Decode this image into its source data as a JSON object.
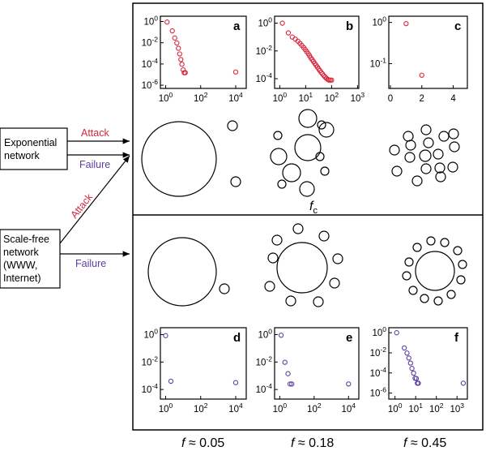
{
  "boxes": {
    "exponential": "Exponential network",
    "scale_free": "Scale-free network (WWW, Internet)"
  },
  "arrows": {
    "attack": "Attack",
    "failure": "Failure",
    "attack_color": "#d7263d",
    "failure_color": "#5b3f9e"
  },
  "critical_label": "f",
  "critical_sub": "c",
  "f_labels": [
    "0.05",
    "0.18",
    "0.45"
  ],
  "f_prefix": "f ≈ ",
  "panels": [
    {
      "letter": "a",
      "row": "top",
      "col": 0,
      "color": "#d7263d",
      "xscale": "log",
      "xticks": [
        {
          "b": "10",
          "e": "0"
        },
        {
          "b": "10",
          "e": "2"
        },
        {
          "b": "10",
          "e": "4"
        }
      ],
      "yticks": [
        {
          "b": "10",
          "e": "0"
        },
        {
          "b": "10",
          "e": "-2"
        },
        {
          "b": "10",
          "e": "-4"
        },
        {
          "b": "10",
          "e": "-6"
        }
      ],
      "xrange": [
        -0.3,
        4.6
      ],
      "yrange": [
        -6.3,
        0.5
      ],
      "points": [
        [
          0.08,
          -0.05
        ],
        [
          0.38,
          -0.88
        ],
        [
          0.52,
          -1.55
        ],
        [
          0.64,
          -2.02
        ],
        [
          0.73,
          -2.52
        ],
        [
          0.8,
          -3.05
        ],
        [
          0.87,
          -3.58
        ],
        [
          0.93,
          -4.02
        ],
        [
          1.0,
          -4.55
        ],
        [
          1.06,
          -4.82
        ],
        [
          1.12,
          -4.82
        ],
        [
          4.0,
          -4.75
        ]
      ]
    },
    {
      "letter": "b",
      "row": "top",
      "col": 1,
      "color": "#d7263d",
      "xscale": "log",
      "xticks": [
        {
          "b": "10",
          "e": "0"
        },
        {
          "b": "10",
          "e": "1"
        },
        {
          "b": "10",
          "e": "2"
        },
        {
          "b": "10",
          "e": "3"
        }
      ],
      "yticks": [
        {
          "b": "10",
          "e": "0"
        },
        {
          "b": "10",
          "e": "-2"
        },
        {
          "b": "10",
          "e": "-4"
        }
      ],
      "xrange": [
        -0.2,
        3.05
      ],
      "yrange": [
        -4.7,
        0.5
      ],
      "points": [
        [
          0.1,
          0.0
        ],
        [
          0.33,
          -0.7
        ],
        [
          0.48,
          -1.0
        ],
        [
          0.6,
          -1.15
        ],
        [
          0.7,
          -1.3
        ],
        [
          0.78,
          -1.45
        ],
        [
          0.85,
          -1.6
        ],
        [
          0.92,
          -1.75
        ],
        [
          0.98,
          -1.9
        ],
        [
          1.04,
          -2.05
        ],
        [
          1.1,
          -2.2
        ],
        [
          1.15,
          -2.35
        ],
        [
          1.2,
          -2.5
        ],
        [
          1.25,
          -2.63
        ],
        [
          1.3,
          -2.76
        ],
        [
          1.35,
          -2.9
        ],
        [
          1.4,
          -3.03
        ],
        [
          1.45,
          -3.16
        ],
        [
          1.5,
          -3.3
        ],
        [
          1.55,
          -3.42
        ],
        [
          1.6,
          -3.55
        ],
        [
          1.65,
          -3.66
        ],
        [
          1.7,
          -3.78
        ],
        [
          1.75,
          -3.88
        ],
        [
          1.8,
          -3.97
        ],
        [
          1.85,
          -4.05
        ],
        [
          1.9,
          -4.1
        ],
        [
          1.95,
          -4.1
        ],
        [
          2.0,
          -4.1
        ]
      ]
    },
    {
      "letter": "c",
      "row": "top",
      "col": 2,
      "color": "#d7263d",
      "xscale": "linear",
      "xticks": [
        {
          "b": "0",
          "e": ""
        },
        {
          "b": "2",
          "e": ""
        },
        {
          "b": "4",
          "e": ""
        }
      ],
      "yticks": [
        {
          "b": "10",
          "e": "0"
        },
        {
          "b": "10",
          "e": "-1"
        }
      ],
      "xrange": [
        -0.1,
        4.9
      ],
      "yrange": [
        -1.6,
        0.15
      ],
      "points": [
        [
          1.0,
          -0.03
        ],
        [
          2.0,
          -1.28
        ]
      ]
    },
    {
      "letter": "d",
      "row": "bottom",
      "col": 0,
      "color": "#5b3f9e",
      "xscale": "log",
      "xticks": [
        {
          "b": "10",
          "e": "0"
        },
        {
          "b": "10",
          "e": "2"
        },
        {
          "b": "10",
          "e": "4"
        }
      ],
      "yticks": [
        {
          "b": "10",
          "e": "0"
        },
        {
          "b": "10",
          "e": "-2"
        },
        {
          "b": "10",
          "e": "-4"
        }
      ],
      "xrange": [
        -0.3,
        4.6
      ],
      "yrange": [
        -4.7,
        0.5
      ],
      "points": [
        [
          0.0,
          -0.08
        ],
        [
          0.3,
          -3.4
        ],
        [
          4.0,
          -3.5
        ]
      ]
    },
    {
      "letter": "e",
      "row": "bottom",
      "col": 1,
      "color": "#5b3f9e",
      "xscale": "log",
      "xticks": [
        {
          "b": "10",
          "e": "0"
        },
        {
          "b": "10",
          "e": "2"
        },
        {
          "b": "10",
          "e": "4"
        }
      ],
      "yticks": [
        {
          "b": "10",
          "e": "0"
        },
        {
          "b": "10",
          "e": "-2"
        },
        {
          "b": "10",
          "e": "-4"
        }
      ],
      "xrange": [
        -0.3,
        4.6
      ],
      "yrange": [
        -4.7,
        0.5
      ],
      "points": [
        [
          0.08,
          -0.05
        ],
        [
          0.3,
          -2.02
        ],
        [
          0.48,
          -2.85
        ],
        [
          0.6,
          -3.6
        ],
        [
          0.7,
          -3.6
        ],
        [
          4.0,
          -3.6
        ]
      ]
    },
    {
      "letter": "f",
      "row": "bottom",
      "col": 2,
      "color": "#5b3f9e",
      "xscale": "log",
      "xticks": [
        {
          "b": "10",
          "e": "0"
        },
        {
          "b": "10",
          "e": "1"
        },
        {
          "b": "10",
          "e": "2"
        },
        {
          "b": "10",
          "e": "3"
        }
      ],
      "yticks": [
        {
          "b": "10",
          "e": "0"
        },
        {
          "b": "10",
          "e": "-2"
        },
        {
          "b": "10",
          "e": "-4"
        },
        {
          "b": "10",
          "e": "-6"
        }
      ],
      "xrange": [
        -0.3,
        3.5
      ],
      "yrange": [
        -6.6,
        0.5
      ],
      "points": [
        [
          0.08,
          0.0
        ],
        [
          0.45,
          -1.52
        ],
        [
          0.58,
          -2.02
        ],
        [
          0.67,
          -2.52
        ],
        [
          0.75,
          -3.02
        ],
        [
          0.82,
          -3.55
        ],
        [
          0.9,
          -4.02
        ],
        [
          0.97,
          -4.52
        ],
        [
          1.03,
          -4.55
        ],
        [
          1.08,
          -5.02
        ],
        [
          1.13,
          -5.02
        ],
        [
          3.3,
          -5.02
        ]
      ]
    }
  ],
  "networks": {
    "top": [
      [
        {
          "r": 46,
          "dx": 0,
          "dy": 0
        },
        {
          "r": 6,
          "dx": 66,
          "dy": -41
        },
        {
          "r": 6,
          "dx": 70,
          "dy": 28
        }
      ],
      [
        {
          "r": 16,
          "dx": -1,
          "dy": -6
        },
        {
          "r": 11,
          "dx": -21,
          "dy": 25
        },
        {
          "r": 11,
          "dx": -1,
          "dy": -42
        },
        {
          "r": 9,
          "dx": -2,
          "dy": 45
        },
        {
          "r": 10,
          "dx": -37,
          "dy": 5
        },
        {
          "r": 5,
          "dx": -38,
          "dy": -21
        },
        {
          "r": 5,
          "dx": -33,
          "dy": 39
        },
        {
          "r": 5,
          "dx": 16,
          "dy": -34
        },
        {
          "r": 9,
          "dx": 22,
          "dy": -28
        },
        {
          "r": 5,
          "dx": 14,
          "dy": 5
        },
        {
          "r": 5,
          "dx": 20,
          "dy": 23
        }
      ],
      [
        {
          "r": 7,
          "dx": 0,
          "dy": 0
        },
        {
          "r": 6,
          "dx": -21,
          "dy": -24
        },
        {
          "r": 6,
          "dx": 1,
          "dy": -32
        },
        {
          "r": 6,
          "dx": 23,
          "dy": -24
        },
        {
          "r": 6,
          "dx": 36,
          "dy": -11
        },
        {
          "r": 6,
          "dx": 34,
          "dy": 14
        },
        {
          "r": 6,
          "dx": 19,
          "dy": 26
        },
        {
          "r": 6,
          "dx": -10,
          "dy": 31
        },
        {
          "r": 6,
          "dx": -35,
          "dy": 19
        },
        {
          "r": 6,
          "dx": -38,
          "dy": -7
        },
        {
          "r": 6,
          "dx": -19,
          "dy": 2
        },
        {
          "r": 6,
          "dx": 16,
          "dy": -2
        },
        {
          "r": 6,
          "dx": 4,
          "dy": -16
        },
        {
          "r": 6,
          "dx": 1,
          "dy": 16
        },
        {
          "r": 6,
          "dx": -18,
          "dy": -13
        },
        {
          "r": 6,
          "dx": 18,
          "dy": 15
        },
        {
          "r": 6,
          "dx": 35,
          "dy": -27
        }
      ]
    ],
    "bottom": [
      [
        {
          "r": 42,
          "dx": 0,
          "dy": 0
        },
        {
          "r": 6,
          "dx": 52,
          "dy": 21
        }
      ],
      [
        {
          "r": 31,
          "dx": 0,
          "dy": 0
        },
        {
          "r": 6,
          "dx": -5,
          "dy": -48
        },
        {
          "r": 6,
          "dx": 27,
          "dy": -39
        },
        {
          "r": 6,
          "dx": 44,
          "dy": -11
        },
        {
          "r": 6,
          "dx": 40,
          "dy": 19
        },
        {
          "r": 6,
          "dx": 20,
          "dy": 42
        },
        {
          "r": 6,
          "dx": -14,
          "dy": 41
        },
        {
          "r": 6,
          "dx": -40,
          "dy": 23
        },
        {
          "r": 6,
          "dx": -36,
          "dy": -12
        },
        {
          "r": 6,
          "dx": -31,
          "dy": -34
        }
      ],
      [
        {
          "r": 24,
          "dx": 0,
          "dy": 0
        },
        {
          "r": 5,
          "dx": -22,
          "dy": -29
        },
        {
          "r": 5,
          "dx": -5,
          "dy": -37
        },
        {
          "r": 5,
          "dx": 12,
          "dy": -35
        },
        {
          "r": 5,
          "dx": 28,
          "dy": -25
        },
        {
          "r": 5,
          "dx": 34,
          "dy": -8
        },
        {
          "r": 5,
          "dx": 32,
          "dy": 11
        },
        {
          "r": 5,
          "dx": 20,
          "dy": 29
        },
        {
          "r": 5,
          "dx": 4,
          "dy": 37
        },
        {
          "r": 5,
          "dx": -13,
          "dy": 34
        },
        {
          "r": 5,
          "dx": -27,
          "dy": 24
        },
        {
          "r": 5,
          "dx": -35,
          "dy": 6
        },
        {
          "r": 5,
          "dx": -32,
          "dy": -11
        }
      ]
    ]
  }
}
